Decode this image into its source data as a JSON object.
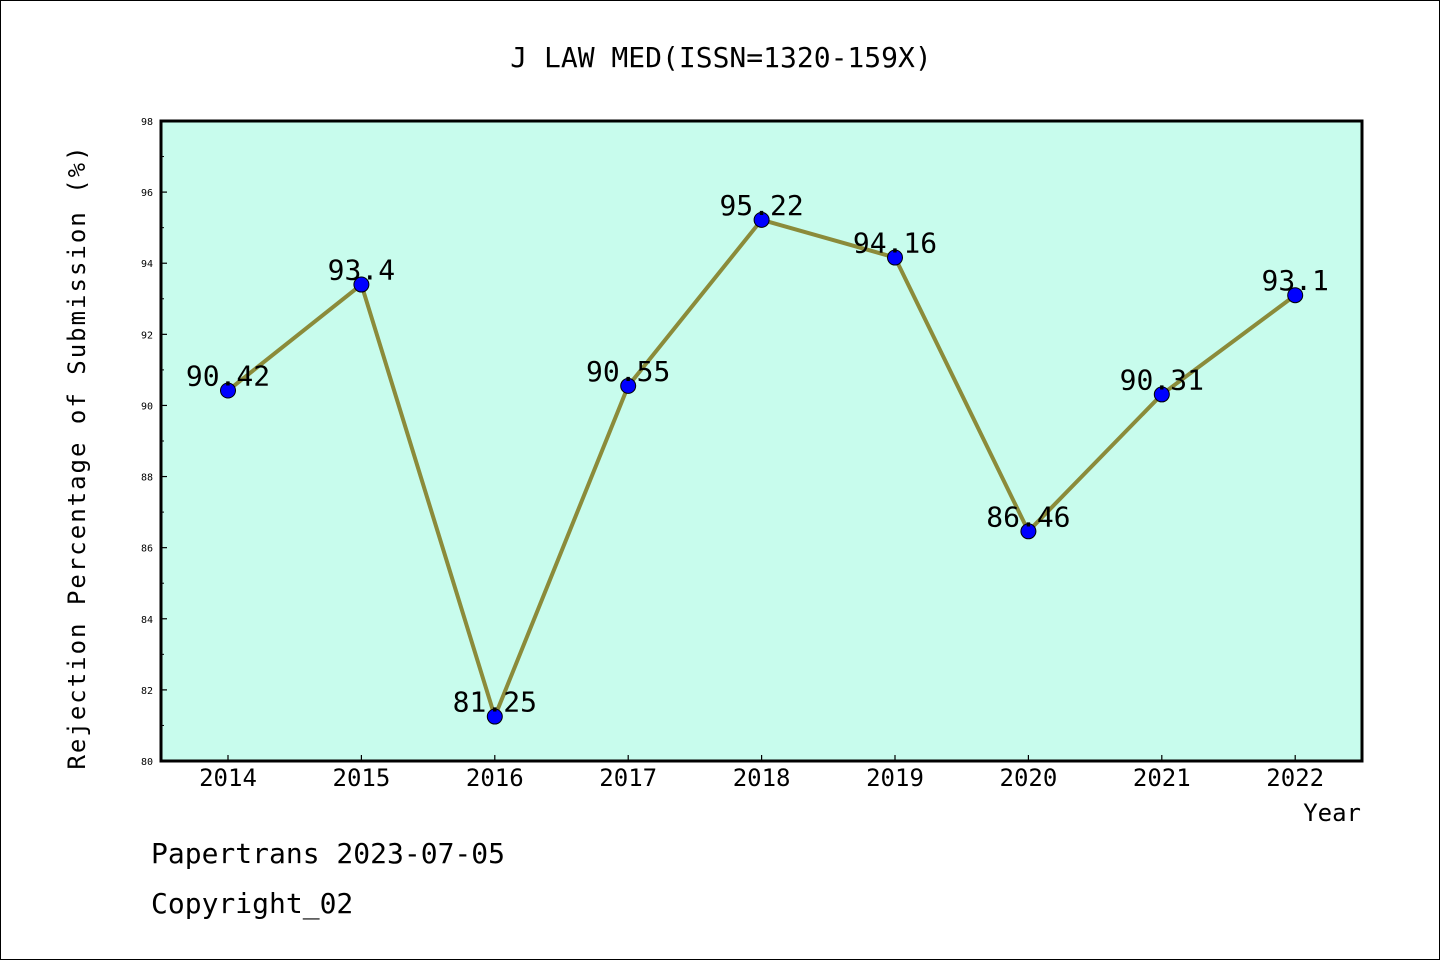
{
  "chart_data": {
    "type": "line",
    "title": "J LAW MED(ISSN=1320-159X)",
    "xlabel": "Year",
    "ylabel": "Rejection Percentage of Submission (%)",
    "categories": [
      "2014",
      "2015",
      "2016",
      "2017",
      "2018",
      "2019",
      "2020",
      "2021",
      "2022"
    ],
    "series": [
      {
        "values": [
          90.42,
          93.4,
          81.25,
          90.55,
          95.22,
          94.16,
          86.46,
          90.31,
          93.1
        ],
        "labels": [
          "90.42",
          "93.4",
          "81.25",
          "90.55",
          "95.22",
          "94.16",
          "86.46",
          "90.31",
          "93.1"
        ],
        "line_color": "#8b8b3a",
        "marker_color": "#0000ff"
      }
    ],
    "ylim": [
      80,
      98
    ],
    "yticks": [
      "80",
      "82",
      "84",
      "86",
      "88",
      "90",
      "92",
      "94",
      "96",
      "98"
    ],
    "plot_background": "#c8fced",
    "grid": false,
    "legend": "none"
  },
  "footer": {
    "line1": "Papertrans 2023-07-05",
    "line2": "Copyright_02"
  }
}
